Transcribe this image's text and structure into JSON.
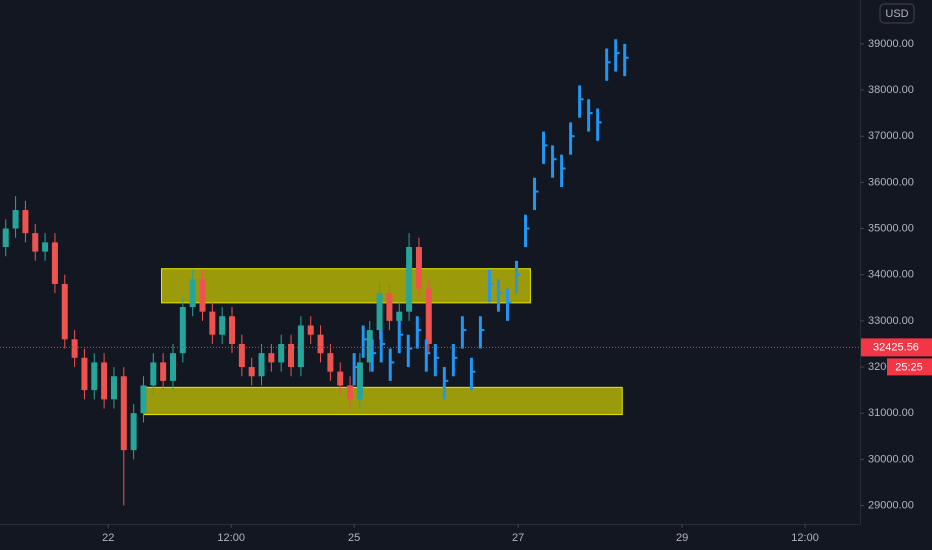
{
  "chart_data": {
    "type": "candlestick",
    "currency": "USD",
    "last_price": 32425.56,
    "countdown": "25:25",
    "xlim": [
      20.68,
      31.17
    ],
    "xticks": [
      {
        "value": 22,
        "label": "22"
      },
      {
        "value": 23.5,
        "label": "12:00"
      },
      {
        "value": 25,
        "label": "25"
      },
      {
        "value": 27,
        "label": "27"
      },
      {
        "value": 29,
        "label": "29"
      },
      {
        "value": 30.5,
        "label": "12:00"
      }
    ],
    "ylim": [
      28600,
      39950
    ],
    "yticks": [
      {
        "value": 29000,
        "label": "29000.00"
      },
      {
        "value": 30000,
        "label": "30000.00"
      },
      {
        "value": 31000,
        "label": "31000.00"
      },
      {
        "value": 32000,
        "label": "32000.00"
      },
      {
        "value": 33000,
        "label": "33000.00"
      },
      {
        "value": 34000,
        "label": "34000.00"
      },
      {
        "value": 35000,
        "label": "35000.00"
      },
      {
        "value": 36000,
        "label": "36000.00"
      },
      {
        "value": 37000,
        "label": "37000.00"
      },
      {
        "value": 38000,
        "label": "38000.00"
      },
      {
        "value": 39000,
        "label": "39000.00"
      }
    ],
    "grid": false,
    "up_color": "#26a69a",
    "down_color": "#ef5350",
    "price_color": "#f23645",
    "candles": {
      "x": [
        20.75,
        20.87,
        20.99,
        21.11,
        21.23,
        21.35,
        21.47,
        21.59,
        21.71,
        21.83,
        21.95,
        22.07,
        22.19,
        22.31,
        22.43,
        22.55,
        22.67,
        22.79,
        22.91,
        23.03,
        23.15,
        23.27,
        23.39,
        23.51,
        23.63,
        23.75,
        23.87,
        23.99,
        24.11,
        24.23,
        24.35,
        24.47,
        24.59,
        24.71,
        24.83,
        24.95,
        25.07,
        25.19,
        25.31,
        25.43,
        25.55,
        25.67,
        25.79,
        25.91
      ],
      "open": [
        34600,
        35000,
        35400,
        34900,
        34500,
        34700,
        33800,
        32600,
        32200,
        31500,
        32100,
        31300,
        31800,
        30200,
        31000,
        31600,
        32100,
        31700,
        32300,
        33300,
        33900,
        33200,
        32700,
        33100,
        32500,
        32000,
        31800,
        32300,
        32100,
        32500,
        32000,
        32900,
        32700,
        32300,
        31900,
        31600,
        31300,
        32100,
        32800,
        33600,
        33000,
        33200,
        34600,
        33700
      ],
      "high": [
        35200,
        35700,
        35600,
        35100,
        34900,
        34900,
        34000,
        32800,
        32400,
        32300,
        32300,
        32000,
        32000,
        31200,
        31800,
        32300,
        32300,
        32500,
        33500,
        34100,
        34100,
        33400,
        33300,
        33300,
        32700,
        32200,
        32500,
        32500,
        32700,
        32700,
        33100,
        33100,
        32900,
        32500,
        32100,
        31800,
        32300,
        33000,
        33800,
        33800,
        33400,
        34900,
        34800,
        33900
      ],
      "low": [
        34400,
        34800,
        34700,
        34300,
        34300,
        33600,
        32400,
        32000,
        31300,
        31300,
        31100,
        31100,
        29000,
        30000,
        30800,
        31400,
        31500,
        31500,
        32100,
        33100,
        33000,
        32500,
        32500,
        32300,
        31800,
        31600,
        31600,
        31900,
        31900,
        31800,
        31800,
        32500,
        32100,
        31700,
        31400,
        31100,
        31100,
        31900,
        32600,
        32800,
        32800,
        33000,
        33500,
        32300
      ],
      "close": [
        35000,
        35400,
        34900,
        34500,
        34700,
        33800,
        32600,
        32200,
        31500,
        32100,
        31300,
        31800,
        30200,
        31000,
        31600,
        32100,
        31700,
        32300,
        33300,
        33900,
        33200,
        32700,
        33100,
        32500,
        32000,
        31800,
        32300,
        32100,
        32500,
        32000,
        32900,
        32700,
        32300,
        31900,
        31600,
        31300,
        32100,
        32800,
        33600,
        33000,
        33200,
        34600,
        33700,
        32500
      ]
    },
    "projection": {
      "color": "#2196f3",
      "x": [
        25.0,
        25.11,
        25.22,
        25.33,
        25.44,
        25.55,
        25.66,
        25.77,
        25.88,
        25.99,
        26.1,
        26.21,
        26.32,
        26.43,
        26.54,
        26.65,
        26.76,
        26.87,
        26.98,
        27.09,
        27.2,
        27.31,
        27.42,
        27.53,
        27.64,
        27.75,
        27.86,
        27.97,
        28.08,
        28.19,
        28.3
      ],
      "high": [
        32300,
        32900,
        32600,
        32800,
        32400,
        33000,
        32700,
        33100,
        32600,
        32500,
        32000,
        32500,
        33100,
        32200,
        33100,
        34100,
        33900,
        33700,
        34300,
        35300,
        36100,
        37100,
        36800,
        36600,
        37300,
        38100,
        37800,
        37600,
        38900,
        39100,
        39000
      ],
      "low": [
        31600,
        32200,
        31900,
        32100,
        31700,
        32300,
        32000,
        32400,
        31900,
        31800,
        31300,
        31800,
        32400,
        31500,
        32400,
        33400,
        33200,
        33000,
        33600,
        34600,
        35400,
        36400,
        36100,
        35900,
        36600,
        37400,
        37100,
        36900,
        38200,
        38400,
        38300
      ],
      "values": [
        32000,
        32600,
        32300,
        32500,
        32100,
        32700,
        32400,
        32800,
        32300,
        32200,
        31700,
        32200,
        32800,
        31900,
        32800,
        33800,
        33600,
        33400,
        34000,
        35000,
        35800,
        36800,
        36500,
        36300,
        37000,
        37800,
        37500,
        37300,
        38600,
        38800,
        38700
      ]
    },
    "zone_color": "#9a9a0a",
    "zone_border": "#e6e600",
    "zones": [
      {
        "x": [
          22.65,
          27.15
        ],
        "y": [
          33390,
          34130
        ]
      },
      {
        "x": [
          22.43,
          28.27
        ],
        "y": [
          30970,
          31560
        ]
      }
    ]
  }
}
